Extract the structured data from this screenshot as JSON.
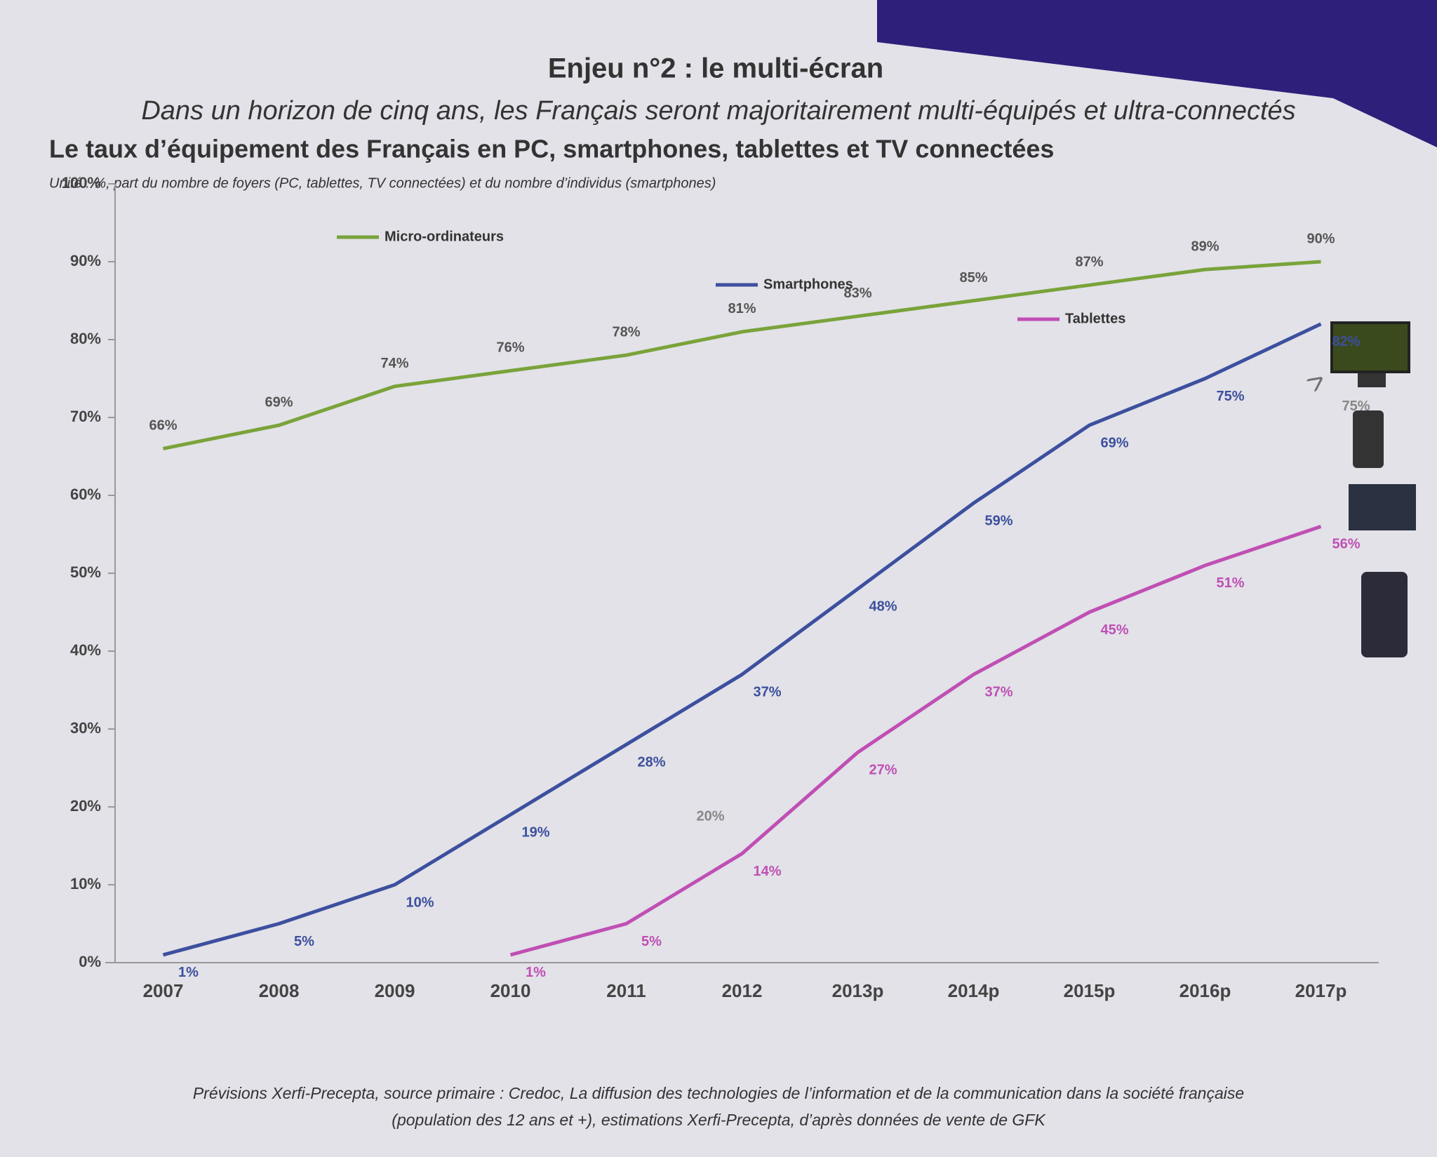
{
  "chart_data": {
    "type": "line",
    "heading": "Enjeu n°2 : le multi-écran",
    "title": "Dans un horizon de cinq ans, les Français seront majoritairement multi-équipés et ultra-connectés",
    "subtitle": "Le taux d’équipement des Français en PC, smartphones, tablettes et TV connectées",
    "unit_note": "Unité : %, part du nombre de foyers (PC, tablettes, TV connectées) et du nombre d’individus (smartphones)",
    "source": [
      "Prévisions Xerfi-Precepta, source primaire : Credoc, La diffusion des technologies de l’information et de la communication dans la société française",
      "(population des 12 ans et +), estimations Xerfi-Precepta, d’après données de vente de GFK"
    ],
    "categories": [
      "2007",
      "2008",
      "2009",
      "2010",
      "2011",
      "2012",
      "2013p",
      "2014p",
      "2015p",
      "2016p",
      "2017p"
    ],
    "ylim": [
      0,
      100
    ],
    "yticks": [
      {
        "value": 0,
        "label": "0%"
      },
      {
        "value": 10,
        "label": "10%"
      },
      {
        "value": 20,
        "label": "20%"
      },
      {
        "value": 30,
        "label": "30%"
      },
      {
        "value": 40,
        "label": "40%"
      },
      {
        "value": 50,
        "label": "50%"
      },
      {
        "value": 60,
        "label": "60%"
      },
      {
        "value": 70,
        "label": "70%"
      },
      {
        "value": 80,
        "label": "80%"
      },
      {
        "value": 90,
        "label": "90%"
      },
      {
        "value": 100,
        "label": "100%"
      }
    ],
    "series": [
      {
        "name": "Micro-ordinateurs",
        "color": "#7aa33a",
        "values": [
          66,
          69,
          74,
          76,
          78,
          81,
          83,
          85,
          87,
          89,
          90
        ],
        "value_labels": [
          "66%",
          "69%",
          "74%",
          "76%",
          "78%",
          "81%",
          "83%",
          "85%",
          "87%",
          "89%",
          "90%"
        ]
      },
      {
        "name": "Smartphones",
        "color": "#3d4f9e",
        "values": [
          1,
          5,
          10,
          19,
          28,
          37,
          48,
          59,
          69,
          75,
          82
        ],
        "value_labels": [
          "1%",
          "5%",
          "10%",
          "19%",
          "28%",
          "37%",
          "48%",
          "59%",
          "69%",
          "75%",
          "82%"
        ]
      },
      {
        "name": "Tablettes",
        "color": "#c04fb4",
        "values": [
          null,
          null,
          null,
          1,
          5,
          14,
          27,
          37,
          45,
          51,
          56
        ],
        "value_labels": [
          null,
          null,
          null,
          "1%",
          "5%",
          "14%",
          "27%",
          "37%",
          "45%",
          "51%",
          "56%"
        ]
      },
      {
        "color": "#707070",
        "values": [
          null,
          null,
          null,
          null,
          null,
          20,
          null,
          null,
          null,
          null,
          75
        ],
        "value_labels": [
          null,
          null,
          null,
          null,
          null,
          "20%",
          null,
          null,
          null,
          null,
          "75%"
        ]
      }
    ]
  }
}
